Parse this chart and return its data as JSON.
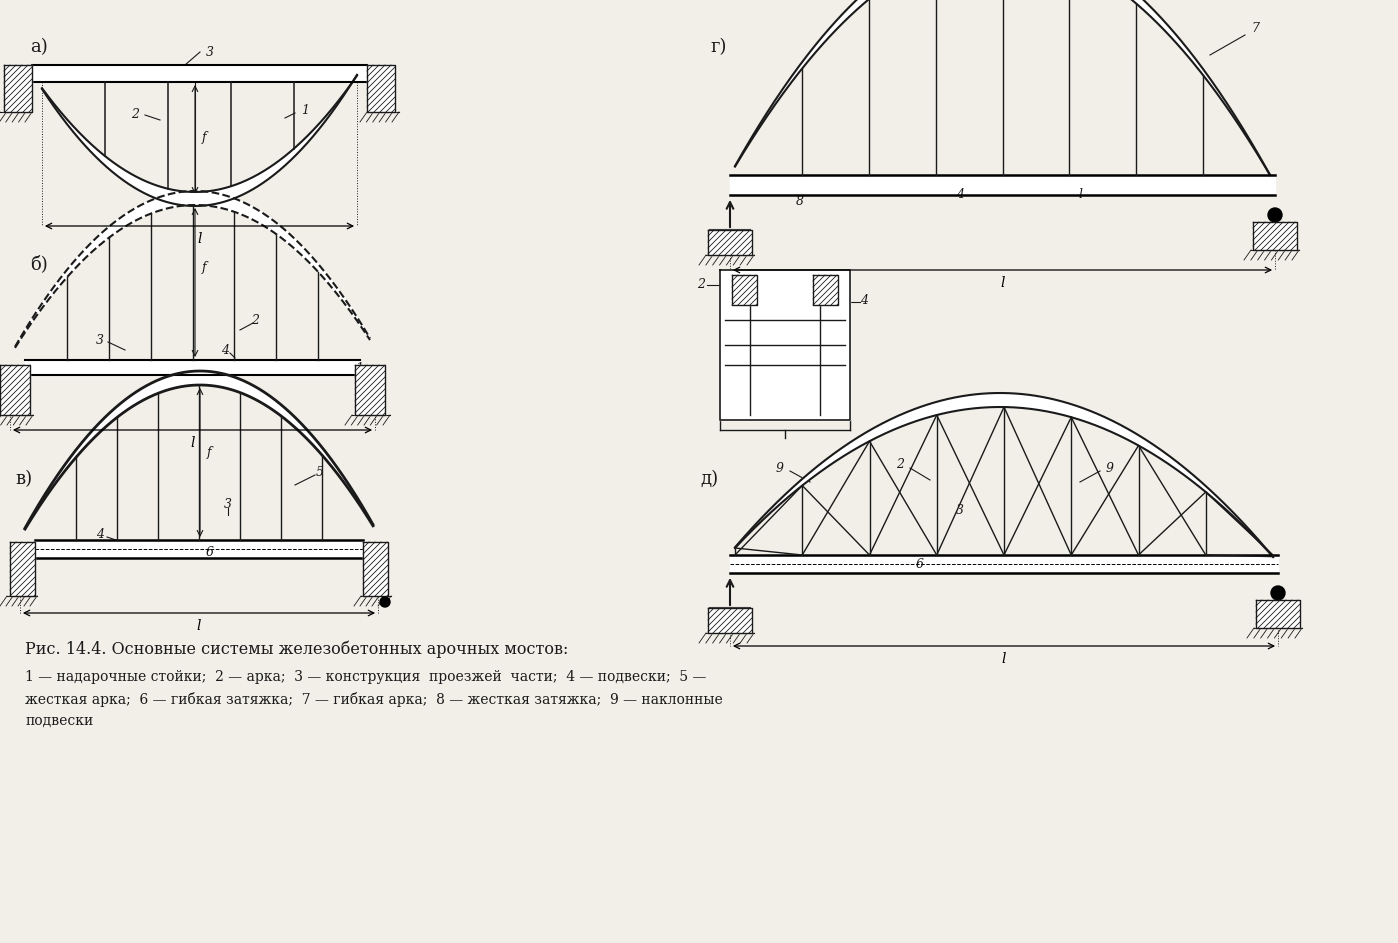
{
  "bg_color": "#f2efe9",
  "line_color": "#1a1a1a",
  "title_text": "Рис. 14.4. Основные системы железобетонных арочных мостов:",
  "cap1": "1 — надарочные стойки;  2 — арка;  3 — конструкция  проезжей  части;  4 — подвески;  5 —",
  "cap2": "жесткая арка;  6 — гибкая затяжка;  7 — гибкая арка;  8 — жесткая затяжка;  9 — наклонные",
  "cap3": "подвески"
}
